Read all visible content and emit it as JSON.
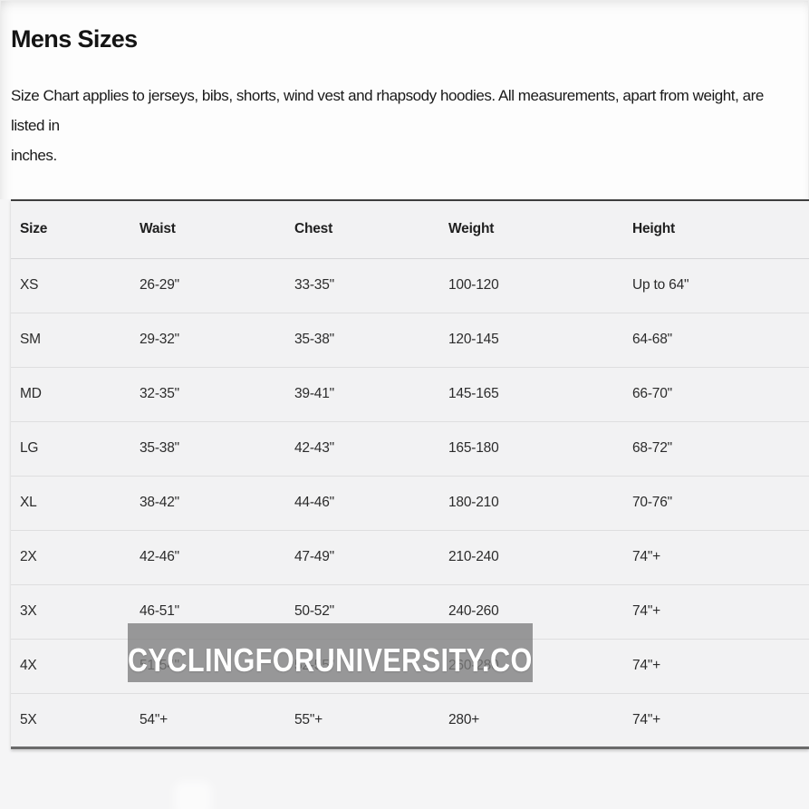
{
  "page": {
    "title": "Mens Sizes",
    "description_line1": "Size Chart applies to jerseys, bibs, shorts, wind vest and rhapsody hoodies. All measurements, apart from weight, are listed in",
    "description_line2": "inches."
  },
  "table": {
    "columns": [
      "Size",
      "Waist",
      "Chest",
      "Weight",
      "Height"
    ],
    "rows": [
      [
        "XS",
        "26-29\"",
        "33-35\"",
        "100-120",
        "Up to 64\""
      ],
      [
        "SM",
        "29-32\"",
        "35-38\"",
        "120-145",
        "64-68\""
      ],
      [
        "MD",
        "32-35\"",
        "39-41\"",
        "145-165",
        "66-70\""
      ],
      [
        "LG",
        "35-38\"",
        "42-43\"",
        "165-180",
        "68-72\""
      ],
      [
        "XL",
        "38-42\"",
        "44-46\"",
        "180-210",
        "70-76\""
      ],
      [
        "2X",
        "42-46\"",
        "47-49\"",
        "210-240",
        "74\"+"
      ],
      [
        "3X",
        "46-51\"",
        "50-52\"",
        "240-260",
        "74\"+"
      ],
      [
        "4X",
        "51-54\"",
        "52-55\"",
        "260-280",
        "74\"+"
      ],
      [
        "5X",
        "54\"+",
        "55\"+",
        "280+",
        "74\"+"
      ]
    ]
  },
  "watermark": {
    "text": "CYCLINGFORUNIVERSITY.COM",
    "background": "#7d7d7d",
    "text_color": "#ffffff"
  },
  "colors": {
    "page_background": "#fdfdfd",
    "table_background": "#f2f2f3",
    "table_top_border": "#3e3e3e",
    "table_bottom_border": "#6a6a6a",
    "text": "#1c1c1c"
  }
}
